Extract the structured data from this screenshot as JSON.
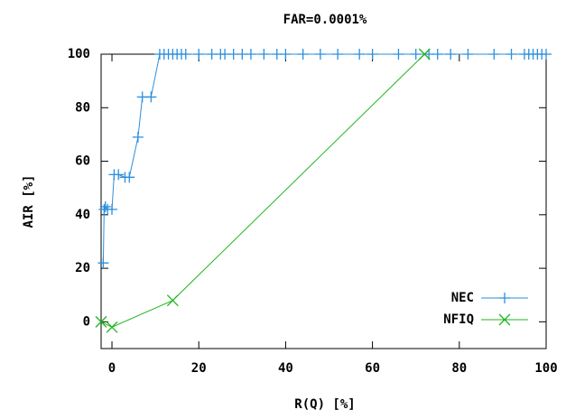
{
  "chart_data": {
    "type": "line",
    "title": "FAR=0.0001%",
    "x_label": "R(Q) [%]",
    "y_label": "AIR [%]",
    "xlim": [
      -2.5,
      100
    ],
    "ylim": [
      -10,
      100
    ],
    "xticks": [
      0,
      20,
      40,
      60,
      80,
      100
    ],
    "yticks": [
      0,
      20,
      40,
      60,
      80,
      100
    ],
    "grid": false,
    "legend": "bottom-right",
    "series": [
      {
        "name": "NEC",
        "color": "#2a8fe0",
        "marker": "plus",
        "x": [
          -2,
          -1.8,
          -1.5,
          -1,
          0,
          0.5,
          1.5,
          3,
          4,
          6,
          7,
          9,
          11,
          12,
          13,
          14,
          15,
          16,
          17,
          20,
          23,
          25,
          26,
          28,
          30,
          32,
          35,
          38,
          40,
          44,
          48,
          52,
          57,
          60,
          66,
          70,
          73,
          75,
          78,
          82,
          88,
          92,
          95,
          96,
          97,
          98,
          99,
          100
        ],
        "values": [
          22,
          42,
          43,
          42,
          42,
          55,
          55,
          54,
          54,
          69,
          84,
          84,
          100,
          100,
          100,
          100,
          100,
          100,
          100,
          100,
          100,
          100,
          100,
          100,
          100,
          100,
          100,
          100,
          100,
          100,
          100,
          100,
          100,
          100,
          100,
          100,
          100,
          100,
          100,
          100,
          100,
          100,
          100,
          100,
          100,
          100,
          100,
          100
        ]
      },
      {
        "name": "NFIQ",
        "color": "#22b522",
        "marker": "cross",
        "x": [
          -2.5,
          0,
          14,
          72
        ],
        "values": [
          0,
          -2,
          8,
          100
        ]
      }
    ]
  }
}
